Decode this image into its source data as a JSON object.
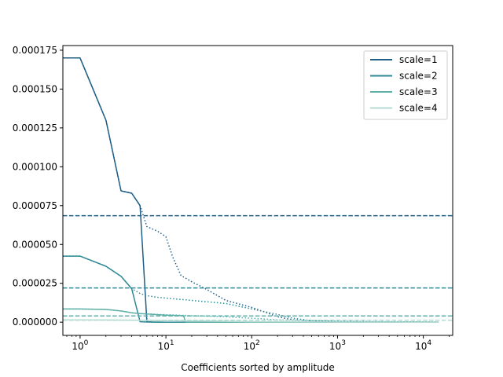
{
  "chart_data": {
    "type": "line",
    "title": "",
    "xlabel": "Coefficients sorted by amplitude",
    "ylabel": "",
    "xscale": "log",
    "xlim": [
      0.63,
      22000
    ],
    "ylim": [
      -8.5e-06,
      0.000178
    ],
    "x_ticks": [
      {
        "value": 1,
        "base": "10",
        "exp": "0"
      },
      {
        "value": 10,
        "base": "10",
        "exp": "1"
      },
      {
        "value": 100,
        "base": "10",
        "exp": "2"
      },
      {
        "value": 1000,
        "base": "10",
        "exp": "3"
      },
      {
        "value": 10000,
        "base": "10",
        "exp": "4"
      }
    ],
    "y_ticks": [
      {
        "value": 0,
        "label": "0.000000"
      },
      {
        "value": 2.5e-05,
        "label": "0.000025"
      },
      {
        "value": 5e-05,
        "label": "0.000050"
      },
      {
        "value": 7.5e-05,
        "label": "0.000075"
      },
      {
        "value": 0.0001,
        "label": "0.000100"
      },
      {
        "value": 0.000125,
        "label": "0.000125"
      },
      {
        "value": 0.00015,
        "label": "0.000150"
      },
      {
        "value": 0.000175,
        "label": "0.000175"
      }
    ],
    "grid": false,
    "legend_position": "top-right",
    "series": [
      {
        "name": "scale=1",
        "color": "#1f5f87",
        "solid": {
          "x": [
            0.63,
            1,
            2,
            3,
            4,
            5,
            6,
            7,
            10,
            20,
            100,
            1000,
            15000
          ],
          "y": [
            0.00017,
            0.00017,
            0.00013,
            8.45e-05,
            8.3e-05,
            7.5e-05,
            3e-07,
            1e-07,
            0,
            0,
            0,
            0,
            0
          ]
        },
        "dotted": {
          "x": [
            0.63,
            1,
            2,
            3,
            4,
            5,
            6,
            8,
            10,
            12,
            15,
            20,
            30,
            50,
            100,
            150,
            200,
            300,
            500,
            1000,
            3000,
            15000
          ],
          "y": [
            0.00017,
            0.00017,
            0.00013,
            8.45e-05,
            8.3e-05,
            7.5e-05,
            6.15e-05,
            5.85e-05,
            5.5e-05,
            4.2e-05,
            3e-05,
            2.6e-05,
            2.1e-05,
            1.4e-05,
            9.5e-06,
            6e-06,
            3.5e-06,
            1.5e-06,
            8e-07,
            4e-07,
            2e-07,
            1e-07
          ]
        },
        "threshold": 6.85e-05
      },
      {
        "name": "scale=2",
        "color": "#2e8a94",
        "solid": {
          "x": [
            0.63,
            1,
            2,
            3,
            4,
            5,
            6,
            10,
            17,
            100,
            1000,
            15000
          ],
          "y": [
            4.25e-05,
            4.25e-05,
            3.6e-05,
            2.95e-05,
            2.15e-05,
            3e-07,
            1e-07,
            0,
            0,
            0,
            0,
            0
          ]
        },
        "dotted": {
          "x": [
            0.63,
            1,
            2,
            3,
            4,
            5,
            6,
            8,
            10,
            20,
            50,
            100,
            200,
            300,
            500,
            1000,
            15000
          ],
          "y": [
            4.25e-05,
            4.25e-05,
            3.6e-05,
            2.95e-05,
            2.15e-05,
            1.85e-05,
            1.7e-05,
            1.6e-05,
            1.55e-05,
            1.4e-05,
            1.2e-05,
            8.5e-06,
            5e-06,
            2.5e-06,
            1e-06,
            5e-07,
            1e-07
          ]
        },
        "threshold": 2.2e-05
      },
      {
        "name": "scale=3",
        "color": "#5fb0a8",
        "solid": {
          "x": [
            0.63,
            1,
            2,
            3,
            4,
            5,
            10,
            16,
            17,
            100,
            1000,
            15000
          ],
          "y": [
            8.5e-06,
            8.5e-06,
            8.2e-06,
            7.2e-06,
            6e-06,
            5.5e-06,
            4.5e-06,
            4.2e-06,
            1e-07,
            0,
            0,
            0
          ]
        },
        "dotted": {
          "x": [
            0.63,
            1,
            2,
            3,
            4,
            5,
            10,
            20,
            50,
            100,
            200,
            500,
            1000,
            15000
          ],
          "y": [
            8.5e-06,
            8.5e-06,
            8.2e-06,
            7.2e-06,
            6e-06,
            5.5e-06,
            4.8e-06,
            4.2e-06,
            3.5e-06,
            2.5e-06,
            1.5e-06,
            7e-07,
            3e-07,
            1e-07
          ]
        },
        "threshold": 4e-06
      },
      {
        "name": "scale=4",
        "color": "#b6dbd3",
        "solid": {
          "x": [
            0.63,
            1,
            2,
            5,
            10,
            20,
            100,
            1000,
            15000
          ],
          "y": [
            1.5e-06,
            1.5e-06,
            1.4e-06,
            1.2e-06,
            1e-06,
            8e-07,
            3e-07,
            1e-07,
            0
          ]
        },
        "dotted": {
          "x": [
            0.63,
            1,
            2,
            5,
            10,
            50,
            100,
            1000,
            15000
          ],
          "y": [
            1.5e-06,
            1.5e-06,
            1.4e-06,
            1.2e-06,
            1e-06,
            7e-07,
            4e-07,
            1e-07,
            0
          ]
        },
        "threshold": 1.2e-06
      }
    ]
  }
}
